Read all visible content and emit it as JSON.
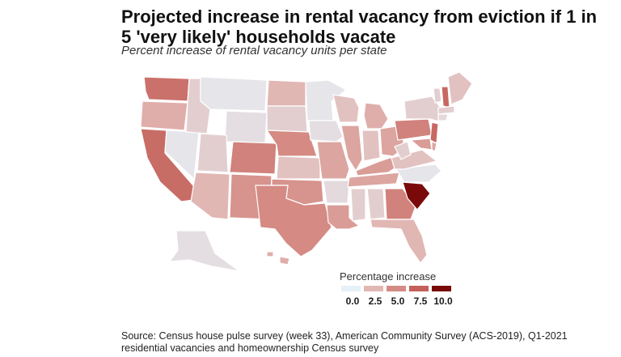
{
  "title": "Projected increase in rental vacancy from eviction if 1 in 5 'very likely' households vacate",
  "subtitle": "Percent increase of rental vacancy units per state",
  "source": "Source: Census house pulse survey (week 33), American Community Survey (ACS-2019), Q1-2021 residential vacancies and homeownership Census survey",
  "legend": {
    "title": "Percentage increase",
    "ticks": [
      "0.0",
      "2.5",
      "5.0",
      "7.5",
      "10.0"
    ],
    "colors": [
      "#e6f0f8",
      "#e1b7b3",
      "#d58a84",
      "#c3605a",
      "#7a0a0a"
    ]
  },
  "states": {
    "WA": 6.5,
    "OR": 3.0,
    "CA": 6.8,
    "NV": 0.5,
    "ID": 1.5,
    "MT": 0.5,
    "WY": 0.8,
    "UT": 1.5,
    "AZ": 2.5,
    "CO": 5.5,
    "NM": 4.5,
    "ND": 2.5,
    "SD": 1.5,
    "NE": 5.0,
    "KS": 2.0,
    "OK": 4.5,
    "TX": 5.0,
    "MN": 0.5,
    "IA": 0.8,
    "MO": 3.5,
    "AR": 1.0,
    "LA": 4.0,
    "WI": 2.0,
    "IL": 3.5,
    "MI": 3.0,
    "IN": 2.0,
    "OH": 3.5,
    "KY": 4.0,
    "TN": 3.5,
    "MS": 1.5,
    "AL": 1.5,
    "GA": 5.5,
    "FL": 2.5,
    "SC": 10.0,
    "NC": 0.5,
    "VA": 2.0,
    "WV": 1.5,
    "PA": 5.5,
    "NY": 1.5,
    "NJ": 7.0,
    "VT": 1.5,
    "NH": 7.0,
    "ME": 2.0,
    "MA": 1.5,
    "CT": 1.0,
    "MD": 4.0,
    "DE": 3.5,
    "AK": 0.8,
    "HI": 3.0
  }
}
